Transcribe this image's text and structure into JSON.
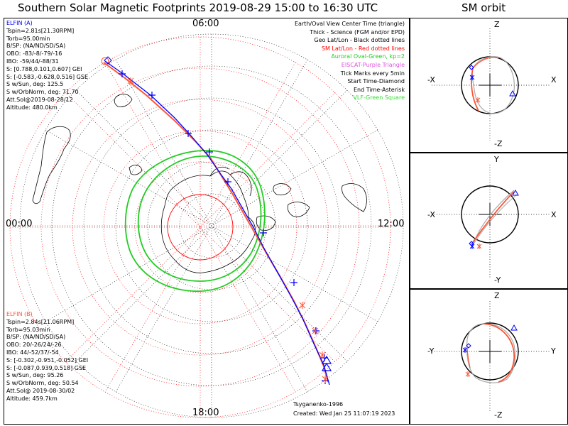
{
  "header": {
    "title": "Southern Solar Magnetic Footprints 2019-08-29 15:00 to 16:30 UTC",
    "orbit_title": "SM orbit"
  },
  "map": {
    "hour_labels": {
      "top": "06:00",
      "bottom": "18:00",
      "left": "00:00",
      "right": "12:00"
    },
    "legend": [
      {
        "text": "Earth/Oval View Center Time (triangle)",
        "color": "#000000"
      },
      {
        "text": "Thick - Science (FGM and/or EPD)",
        "color": "#000000"
      },
      {
        "text": "Geo Lat/Lon - Black dotted lines",
        "color": "#000000"
      },
      {
        "text": "SM Lat/Lon - Red dotted lines",
        "color": "#ff0000"
      },
      {
        "text": "Auroral Oval-Green, kp=2",
        "color": "#22cc22"
      },
      {
        "text": "EISCAT-Purple Triangle",
        "color": "#dd55dd"
      },
      {
        "text": "Tick Marks every 5min",
        "color": "#000000"
      },
      {
        "text": "Start Time-Diamond",
        "color": "#000000"
      },
      {
        "text": "End Time-Asterisk",
        "color": "#000000"
      },
      {
        "text": "VLF-Green Square",
        "color": "#33dd33"
      }
    ],
    "elfin_a": {
      "name": "ELFIN (A)",
      "color": "#0000ff",
      "lines": [
        "Tspin=2.81s[21.30RPM]",
        "Torb=95.00min",
        "B/SP: (NA/ND/SD/SA)",
        "OBO: -83/-8/-79/-16",
        "IBO: -59/44/-88/31",
        "S: [0.788,0.101,0.607] GEI",
        "S: [-0.583,-0.628,0.516] GSE",
        "S w/Sun, deg: 125.5",
        "S w/OrbNorm, deg: 71.70",
        "Att.Sol@2019-08-28/12",
        "Altitude: 480.0km"
      ]
    },
    "elfin_b": {
      "name": "ELFIN (B)",
      "color": "#ff5533",
      "lines": [
        "Tspin=2.84s[21.06RPM]",
        "Torb=95.03min",
        "B/SP: (NA/ND/SD/SA)",
        "OBO: 20/-26/24/-26",
        "IBO: 44/-52/37/-54",
        "S: [-0.302,-0.951,-0.052] GEI",
        "S: [-0.087,0.939,0.518] GSE",
        "S w/Sun, deg: 95.26",
        "S w/OrbNorm, deg: 50.54",
        "Att.Sol@ 2019-08-30/02",
        "Altitude: 459.7km"
      ]
    },
    "model": "Tsyganenko-1996",
    "created": "Created: Wed Jan 25 11:07:19 2023"
  },
  "orbits": {
    "xz": {
      "top": "Z",
      "bottom": "-Z",
      "left": "-X",
      "right": "X"
    },
    "xy": {
      "top": "Y",
      "bottom": "-Y",
      "left": "-X",
      "right": "X"
    },
    "yz": {
      "top": "Z",
      "bottom": "-Z",
      "left": "-Y",
      "right": "Y"
    }
  },
  "colors": {
    "elfin_a": "#0000ff",
    "elfin_b": "#ff5533",
    "oval": "#22cc22",
    "sm_grid": "#ff0000",
    "orbit_gray": "#aaaaaa"
  }
}
